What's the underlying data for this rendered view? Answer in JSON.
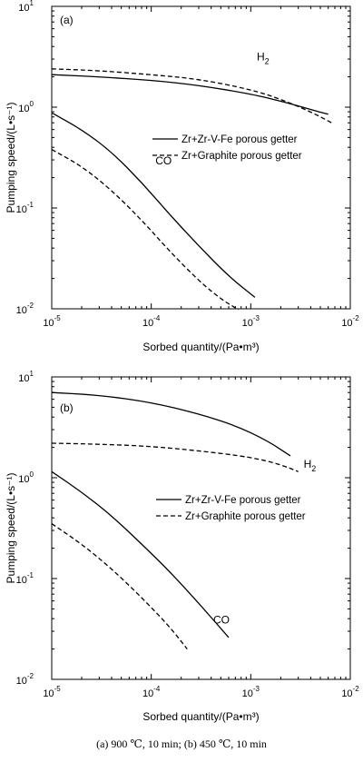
{
  "caption": "(a) 900 ℃, 10 min; (b) 450 ℃, 10 min",
  "colors": {
    "line": "#000000",
    "background": "#ffffff"
  },
  "chart_data": [
    {
      "type": "line",
      "panel_label": "(a)",
      "xlabel": "Sorbed quantity/(Pa•m³)",
      "ylabel": "Pumping speed/(L•s⁻¹)",
      "xscale": "log",
      "yscale": "log",
      "xlim": [
        1e-05,
        0.01
      ],
      "ylim": [
        0.01,
        10
      ],
      "x_ticks": [
        {
          "base": "10",
          "exp": "-5"
        },
        {
          "base": "10",
          "exp": "-4"
        },
        {
          "base": "10",
          "exp": "-3"
        },
        {
          "base": "10",
          "exp": "-2"
        }
      ],
      "y_ticks": [
        {
          "base": "10",
          "exp": "1"
        },
        {
          "base": "10",
          "exp": "0"
        },
        {
          "base": "10",
          "exp": "-1"
        },
        {
          "base": "10",
          "exp": "-2"
        }
      ],
      "legend": {
        "position": "right",
        "entries": [
          {
            "label": "Zr+Zr-V-Fe porous getter",
            "style": "solid"
          },
          {
            "label": "Zr+Graphite porous getter",
            "style": "dashed"
          }
        ]
      },
      "annotations": [
        {
          "text": "H",
          "sub": "2",
          "x": 0.00115,
          "y": 2.9
        },
        {
          "text": "CO",
          "x": 0.00011,
          "y": 0.27
        }
      ],
      "series": [
        {
          "gas": "H2",
          "style": "solid",
          "x": [
            1e-05,
            3e-05,
            0.0001,
            0.0003,
            0.001,
            0.002,
            0.004,
            0.006
          ],
          "y": [
            2.1,
            2.0,
            1.85,
            1.65,
            1.35,
            1.15,
            0.95,
            0.85
          ]
        },
        {
          "gas": "H2",
          "style": "dashed",
          "x": [
            1e-05,
            3e-05,
            0.0001,
            0.0003,
            0.001,
            0.002,
            0.004,
            0.0065
          ],
          "y": [
            2.4,
            2.3,
            2.1,
            1.9,
            1.5,
            1.2,
            0.9,
            0.7
          ]
        },
        {
          "gas": "CO",
          "style": "solid",
          "x": [
            1e-05,
            2e-05,
            4e-05,
            8e-05,
            0.00015,
            0.0003,
            0.0006,
            0.0011
          ],
          "y": [
            0.88,
            0.6,
            0.36,
            0.18,
            0.088,
            0.042,
            0.021,
            0.013
          ]
        },
        {
          "gas": "CO",
          "style": "dashed",
          "x": [
            1e-05,
            2e-05,
            4e-05,
            8e-05,
            0.00015,
            0.0003,
            0.0005,
            0.00075
          ],
          "y": [
            0.38,
            0.26,
            0.15,
            0.076,
            0.038,
            0.019,
            0.0125,
            0.0098
          ]
        }
      ]
    },
    {
      "type": "line",
      "panel_label": "(b)",
      "xlabel": "Sorbed quantity/(Pa•m³)",
      "ylabel": "Pumping speed/(L•s⁻¹)",
      "xscale": "log",
      "yscale": "log",
      "xlim": [
        1e-05,
        0.01
      ],
      "ylim": [
        0.01,
        10
      ],
      "x_ticks": [
        {
          "base": "10",
          "exp": "-5"
        },
        {
          "base": "10",
          "exp": "-4"
        },
        {
          "base": "10",
          "exp": "-3"
        },
        {
          "base": "10",
          "exp": "-2"
        }
      ],
      "y_ticks": [
        {
          "base": "10",
          "exp": "1"
        },
        {
          "base": "10",
          "exp": "0"
        },
        {
          "base": "10",
          "exp": "-1"
        },
        {
          "base": "10",
          "exp": "-2"
        }
      ],
      "legend": {
        "position": "right",
        "entries": [
          {
            "label": "Zr+Zr-V-Fe porous getter",
            "style": "solid"
          },
          {
            "label": "Zr+Graphite porous getter",
            "style": "dashed"
          }
        ]
      },
      "annotations": [
        {
          "text": "H",
          "sub": "2",
          "x": 0.0034,
          "y": 1.25
        },
        {
          "text": "CO",
          "x": 0.00042,
          "y": 0.036
        }
      ],
      "series": [
        {
          "gas": "H2",
          "style": "solid",
          "x": [
            1e-05,
            3e-05,
            0.0001,
            0.0003,
            0.0007,
            0.0015,
            0.0025
          ],
          "y": [
            7.0,
            6.6,
            5.6,
            4.3,
            3.3,
            2.3,
            1.65
          ]
        },
        {
          "gas": "H2",
          "style": "dashed",
          "x": [
            1e-05,
            3e-05,
            0.0001,
            0.0003,
            0.001,
            0.002,
            0.003
          ],
          "y": [
            2.2,
            2.15,
            2.05,
            1.85,
            1.6,
            1.35,
            1.15
          ]
        },
        {
          "gas": "CO",
          "style": "solid",
          "x": [
            1e-05,
            2e-05,
            4e-05,
            8e-05,
            0.00015,
            0.0003,
            0.0006
          ],
          "y": [
            1.15,
            0.72,
            0.42,
            0.22,
            0.12,
            0.057,
            0.026
          ]
        },
        {
          "gas": "CO",
          "style": "dashed",
          "x": [
            1e-05,
            2e-05,
            4e-05,
            8e-05,
            0.00015,
            0.00023
          ],
          "y": [
            0.35,
            0.22,
            0.125,
            0.065,
            0.034,
            0.02
          ]
        }
      ]
    }
  ]
}
